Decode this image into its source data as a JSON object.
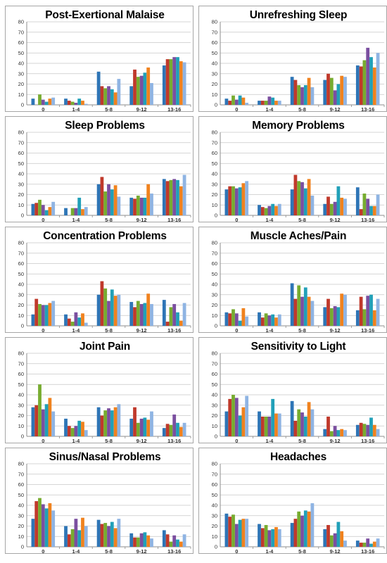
{
  "series_colors": [
    "#2e75b6",
    "#c0392b",
    "#77ac30",
    "#7b4fa0",
    "#21a0b8",
    "#f0821e",
    "#8fb4e3"
  ],
  "chart_data": [
    {
      "type": "bar",
      "title": "Post-Exertional Malaise",
      "ylim": [
        0,
        80
      ],
      "yticks": [
        0,
        10,
        20,
        30,
        40,
        50,
        60,
        70,
        80
      ],
      "categories": [
        "0",
        "1-4",
        "5-8",
        "9-12",
        "13-16"
      ],
      "series": [
        {
          "values": [
            6,
            6,
            32,
            18,
            38
          ]
        },
        {
          "values": [
            0,
            4,
            18,
            34,
            44
          ]
        },
        {
          "values": [
            10,
            3,
            16,
            27,
            44
          ]
        },
        {
          "values": [
            5,
            2,
            18,
            28,
            46
          ]
        },
        {
          "values": [
            3,
            6,
            15,
            31,
            46
          ]
        },
        {
          "values": [
            6,
            4,
            12,
            36,
            42
          ]
        },
        {
          "values": [
            7,
            1,
            25,
            21,
            41
          ]
        }
      ]
    },
    {
      "type": "bar",
      "title": "Unrefreshing Sleep",
      "ylim": [
        0,
        80
      ],
      "yticks": [
        0,
        10,
        20,
        30,
        40,
        50,
        60,
        70,
        80
      ],
      "categories": [
        "0",
        "1-4",
        "5-8",
        "9-12",
        "13-16"
      ],
      "series": [
        {
          "values": [
            6,
            4,
            27,
            24,
            38
          ]
        },
        {
          "values": [
            4,
            4,
            24,
            30,
            37
          ]
        },
        {
          "values": [
            9,
            4,
            19,
            26,
            43
          ]
        },
        {
          "values": [
            5,
            8,
            17,
            14,
            55
          ]
        },
        {
          "values": [
            9,
            7,
            19,
            20,
            46
          ]
        },
        {
          "values": [
            7,
            4,
            26,
            28,
            36
          ]
        },
        {
          "values": [
            2,
            4,
            17,
            27,
            50
          ]
        }
      ]
    },
    {
      "type": "bar",
      "title": "Sleep Problems",
      "ylim": [
        0,
        80
      ],
      "yticks": [
        0,
        10,
        20,
        30,
        40,
        50,
        60,
        70,
        80
      ],
      "categories": [
        "0",
        "1-4",
        "5-8",
        "9-12",
        "13-16"
      ],
      "series": [
        {
          "values": [
            11,
            7,
            30,
            17,
            35
          ]
        },
        {
          "values": [
            12,
            0,
            37,
            16,
            33
          ]
        },
        {
          "values": [
            15,
            7,
            23,
            19,
            34
          ]
        },
        {
          "values": [
            10,
            7,
            30,
            17,
            35
          ]
        },
        {
          "values": [
            5,
            17,
            25,
            17,
            34
          ]
        },
        {
          "values": [
            8,
            6,
            29,
            30,
            28
          ]
        },
        {
          "values": [
            13,
            8,
            18,
            21,
            39
          ]
        }
      ]
    },
    {
      "type": "bar",
      "title": "Memory Problems",
      "ylim": [
        0,
        80
      ],
      "yticks": [
        0,
        10,
        20,
        30,
        40,
        50,
        60,
        70,
        80
      ],
      "categories": [
        "0",
        "1-4",
        "5-8",
        "9-12",
        "13-16"
      ],
      "series": [
        {
          "values": [
            25,
            10,
            25,
            11,
            27
          ]
        },
        {
          "values": [
            28,
            8,
            39,
            18,
            6
          ]
        },
        {
          "values": [
            28,
            7,
            33,
            11,
            21
          ]
        },
        {
          "values": [
            26,
            9,
            32,
            13,
            16
          ]
        },
        {
          "values": [
            27,
            11,
            26,
            28,
            9
          ]
        },
        {
          "values": [
            31,
            9,
            35,
            17,
            9
          ]
        },
        {
          "values": [
            33,
            11,
            19,
            16,
            20
          ]
        }
      ]
    },
    {
      "type": "bar",
      "title": "Concentration Problems",
      "ylim": [
        0,
        80
      ],
      "yticks": [
        0,
        10,
        20,
        30,
        40,
        50,
        60,
        70,
        80
      ],
      "categories": [
        "0",
        "1-4",
        "5-8",
        "9-12",
        "13-16"
      ],
      "series": [
        {
          "values": [
            11,
            11,
            30,
            23,
            25
          ]
        },
        {
          "values": [
            26,
            7,
            43,
            18,
            4
          ]
        },
        {
          "values": [
            21,
            4,
            36,
            24,
            18
          ]
        },
        {
          "values": [
            20,
            13,
            24,
            21,
            21
          ]
        },
        {
          "values": [
            20,
            8,
            35,
            22,
            13
          ]
        },
        {
          "values": [
            22,
            12,
            29,
            31,
            5
          ]
        },
        {
          "values": [
            24,
            3,
            30,
            21,
            22
          ]
        }
      ]
    },
    {
      "type": "bar",
      "title": "Muscle Aches/Pain",
      "ylim": [
        0,
        80
      ],
      "yticks": [
        0,
        10,
        20,
        30,
        40,
        50,
        60,
        70,
        80
      ],
      "categories": [
        "0",
        "1-4",
        "5-8",
        "9-12",
        "13-16"
      ],
      "series": [
        {
          "values": [
            13,
            13,
            41,
            18,
            15
          ]
        },
        {
          "values": [
            12,
            8,
            26,
            26,
            28
          ]
        },
        {
          "values": [
            16,
            12,
            39,
            17,
            16
          ]
        },
        {
          "values": [
            12,
            10,
            28,
            19,
            29
          ]
        },
        {
          "values": [
            5,
            11,
            37,
            18,
            30
          ]
        },
        {
          "values": [
            17,
            8,
            28,
            31,
            15
          ]
        },
        {
          "values": [
            9,
            11,
            24,
            30,
            26
          ]
        }
      ]
    },
    {
      "type": "bar",
      "title": "Joint Pain",
      "ylim": [
        0,
        80
      ],
      "yticks": [
        0,
        10,
        20,
        30,
        40,
        50,
        60,
        70,
        80
      ],
      "categories": [
        "0",
        "1-4",
        "5-8",
        "9-12",
        "13-16"
      ],
      "series": [
        {
          "values": [
            28,
            17,
            28,
            17,
            8
          ]
        },
        {
          "values": [
            30,
            10,
            20,
            28,
            12
          ]
        },
        {
          "values": [
            50,
            8,
            25,
            13,
            11
          ]
        },
        {
          "values": [
            26,
            10,
            27,
            17,
            21
          ]
        },
        {
          "values": [
            31,
            15,
            25,
            18,
            13
          ]
        },
        {
          "values": [
            37,
            14,
            28,
            16,
            9
          ]
        },
        {
          "values": [
            24,
            6,
            31,
            24,
            13
          ]
        }
      ]
    },
    {
      "type": "bar",
      "title": "Sensitivity to Light",
      "ylim": [
        0,
        80
      ],
      "yticks": [
        0,
        10,
        20,
        30,
        40,
        50,
        60,
        70,
        80
      ],
      "categories": [
        "0",
        "1-4",
        "5-8",
        "9-12",
        "13-16"
      ],
      "series": [
        {
          "values": [
            24,
            24,
            34,
            7,
            11
          ]
        },
        {
          "values": [
            36,
            19,
            15,
            19,
            13
          ]
        },
        {
          "values": [
            40,
            19,
            26,
            5,
            12
          ]
        },
        {
          "values": [
            37,
            19,
            23,
            10,
            11
          ]
        },
        {
          "values": [
            20,
            36,
            19,
            6,
            18
          ]
        },
        {
          "values": [
            28,
            22,
            33,
            7,
            11
          ]
        },
        {
          "values": [
            39,
            22,
            26,
            6,
            7
          ]
        }
      ]
    },
    {
      "type": "bar",
      "title": "Sinus/Nasal Problems",
      "ylim": [
        0,
        80
      ],
      "yticks": [
        0,
        10,
        20,
        30,
        40,
        50,
        60,
        70,
        80
      ],
      "categories": [
        "0",
        "1-4",
        "5-8",
        "9-12",
        "13-16"
      ],
      "series": [
        {
          "values": [
            27,
            20,
            26,
            13,
            16
          ]
        },
        {
          "values": [
            44,
            12,
            22,
            9,
            12
          ]
        },
        {
          "values": [
            47,
            17,
            23,
            9,
            5
          ]
        },
        {
          "values": [
            41,
            27,
            20,
            13,
            11
          ]
        },
        {
          "values": [
            37,
            16,
            24,
            14,
            7
          ]
        },
        {
          "values": [
            42,
            28,
            18,
            11,
            5
          ]
        },
        {
          "values": [
            35,
            20,
            27,
            8,
            12
          ]
        }
      ]
    },
    {
      "type": "bar",
      "title": "Headaches",
      "ylim": [
        0,
        80
      ],
      "yticks": [
        0,
        10,
        20,
        30,
        40,
        50,
        60,
        70,
        80
      ],
      "categories": [
        "0",
        "1-4",
        "5-8",
        "9-12",
        "13-16"
      ],
      "series": [
        {
          "values": [
            32,
            22,
            23,
            17,
            6
          ]
        },
        {
          "values": [
            29,
            18,
            27,
            21,
            4
          ]
        },
        {
          "values": [
            31,
            21,
            34,
            11,
            4
          ]
        },
        {
          "values": [
            22,
            16,
            30,
            13,
            8
          ]
        },
        {
          "values": [
            26,
            17,
            35,
            24,
            3
          ]
        },
        {
          "values": [
            27,
            19,
            34,
            15,
            5
          ]
        },
        {
          "values": [
            27,
            17,
            42,
            6,
            8
          ]
        }
      ]
    }
  ]
}
